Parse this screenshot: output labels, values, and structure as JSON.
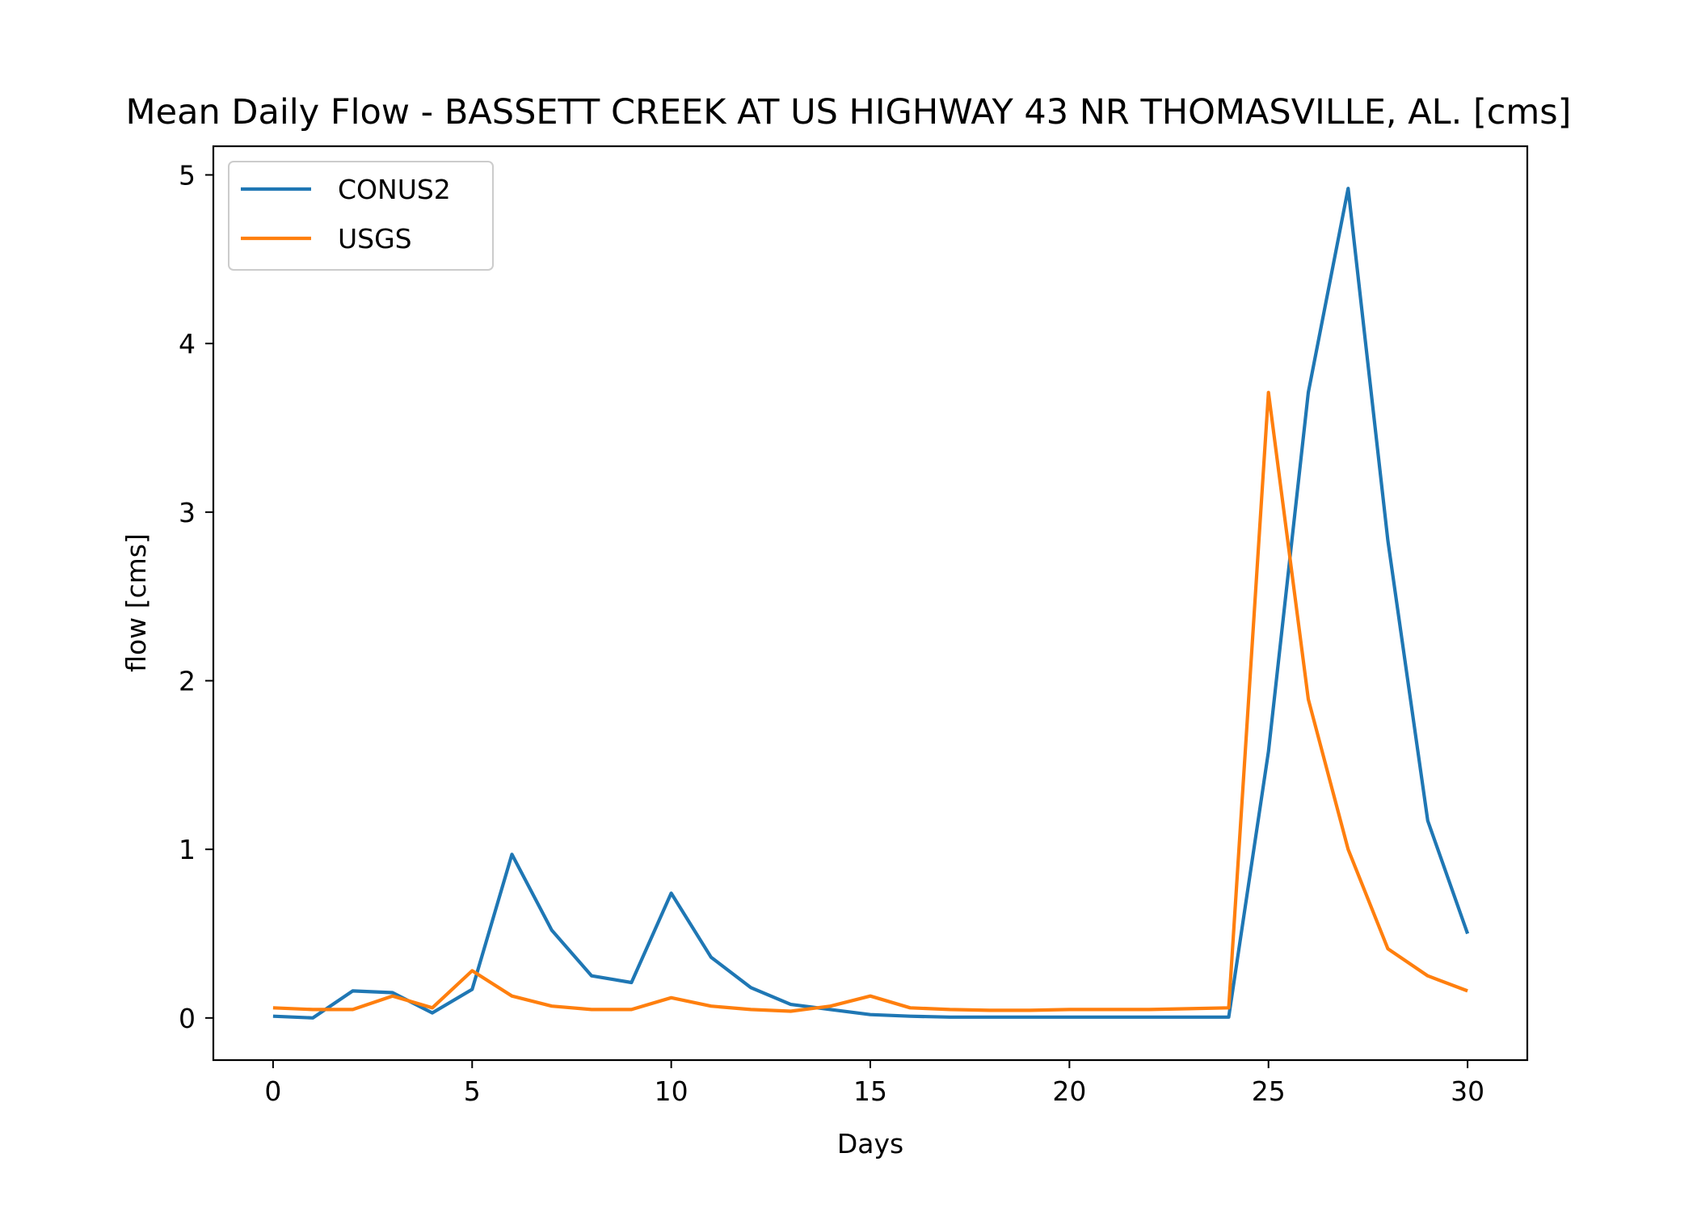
{
  "chart_data": {
    "type": "line",
    "title": "Mean Daily Flow - BASSETT CREEK AT US HIGHWAY 43 NR THOMASVILLE, AL. [cms]",
    "xlabel": "Days",
    "ylabel": "flow [cms]",
    "xlim": [
      -1.5,
      31.5
    ],
    "ylim": [
      -0.25,
      5.17
    ],
    "xticks": [
      0,
      5,
      10,
      15,
      20,
      25,
      30
    ],
    "yticks": [
      0,
      1,
      2,
      3,
      4,
      5
    ],
    "grid": false,
    "legend_position": "upper-left",
    "x": [
      0,
      1,
      2,
      3,
      4,
      5,
      6,
      7,
      8,
      9,
      10,
      11,
      12,
      13,
      14,
      15,
      16,
      17,
      18,
      19,
      20,
      21,
      22,
      23,
      24,
      25,
      26,
      27,
      28,
      29,
      30
    ],
    "series": [
      {
        "name": "CONUS2",
        "color": "#1f77b4",
        "values": [
          0.01,
          0.0,
          0.16,
          0.15,
          0.03,
          0.17,
          0.97,
          0.52,
          0.25,
          0.21,
          0.74,
          0.36,
          0.18,
          0.08,
          0.05,
          0.02,
          0.01,
          0.005,
          0.005,
          0.005,
          0.005,
          0.005,
          0.005,
          0.005,
          0.005,
          1.58,
          3.71,
          4.92,
          2.83,
          1.17,
          0.5
        ]
      },
      {
        "name": "USGS",
        "color": "#ff7f0e",
        "values": [
          0.06,
          0.05,
          0.05,
          0.13,
          0.06,
          0.28,
          0.13,
          0.07,
          0.05,
          0.05,
          0.12,
          0.07,
          0.05,
          0.04,
          0.07,
          0.13,
          0.06,
          0.05,
          0.045,
          0.045,
          0.05,
          0.05,
          0.05,
          0.055,
          0.06,
          3.71,
          1.89,
          1.0,
          0.41,
          0.25,
          0.16
        ]
      }
    ]
  }
}
